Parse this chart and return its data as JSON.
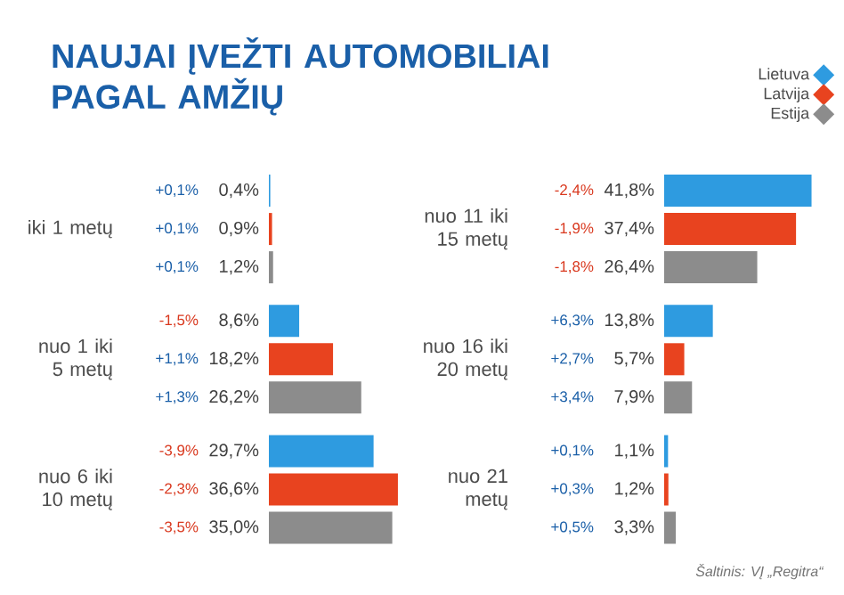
{
  "chart_data": [
    {
      "type": "bar",
      "orientation": "horizontal",
      "title": "NAUJAI ĮVEŽTI AUTOMOBILIAI PAGAL AMŽIŲ",
      "categories": [
        "iki 1 metų",
        "nuo 1 iki 5 metų",
        "nuo 6 iki 10 metų"
      ],
      "tick_labels": "y",
      "legend": false,
      "series": [
        {
          "color": "#2e9be0",
          "values": [
            0.4,
            8.6,
            29.7
          ],
          "value_labels": [
            "0,4%",
            "8,6%",
            "29,7%"
          ]
        },
        {
          "color": "#e8431f",
          "values": [
            0.9,
            18.2,
            36.6
          ],
          "value_labels": [
            "0,9%",
            "18,2%",
            "36,6%"
          ]
        },
        {
          "color": "#8c8c8c",
          "values": [
            1.2,
            26.2,
            35.0
          ],
          "value_labels": [
            "1,2%",
            "26,2%",
            "35,0%"
          ]
        }
      ],
      "annotations": [
        "+0,1%",
        "+0,1%",
        "+0,1%",
        "-1,5%",
        "+1,1%",
        "+1,3%",
        "-3,9%",
        "-2,3%",
        "-3,5%"
      ]
    },
    {
      "type": "bar",
      "orientation": "horizontal",
      "categories": [
        "nuo 11 iki 15 metų",
        "nuo 16 iki 20 metų",
        "nuo 21 metų"
      ],
      "tick_labels": "y",
      "legend": "top right",
      "series": [
        {
          "name": "Lietuva",
          "color": "#2e9be0",
          "values": [
            41.8,
            13.8,
            1.1
          ],
          "value_labels": [
            "41,8%",
            "13,8%",
            "1,1%"
          ]
        },
        {
          "name": "Latvija",
          "color": "#e8431f",
          "values": [
            37.4,
            5.7,
            1.2
          ],
          "value_labels": [
            "37,4%",
            "5,7%",
            "1,2%"
          ]
        },
        {
          "name": "Estija",
          "color": "#8c8c8c",
          "values": [
            26.4,
            7.9,
            3.3
          ],
          "value_labels": [
            "26,4%",
            "7,9%",
            "3,3%"
          ]
        }
      ],
      "annotations": [
        "-2,4%",
        "-1,9%",
        "-1,8%",
        "+6,3%",
        "+2,7%",
        "+3,4%",
        "+0,1%",
        "+0,3%",
        "+0,5%",
        "Šaltinis: VĮ „Regitra“"
      ]
    }
  ]
}
